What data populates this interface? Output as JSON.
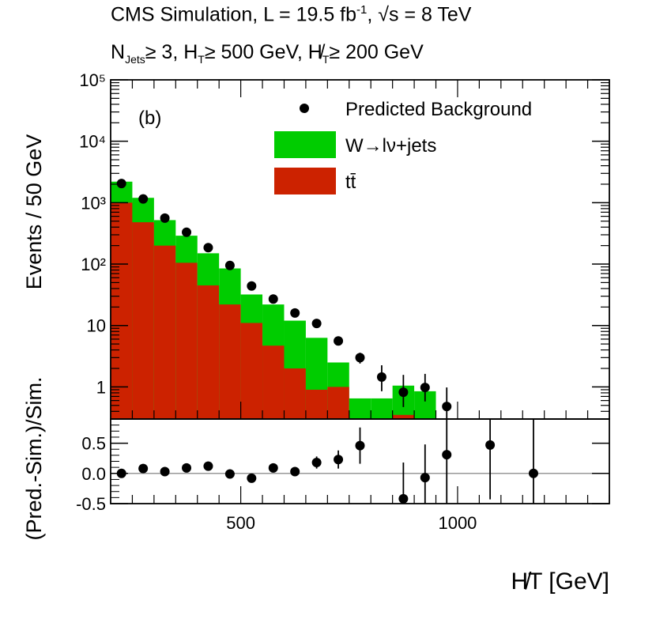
{
  "header": {
    "line1_prefix": "CMS Simulation, L = 19.5 fb",
    "line1_sup": "-1",
    "line1_suffix": ",  √s = 8 TeV",
    "line2_njets": "N",
    "line2_njets_sub": "Jets",
    "line2_cut1": "≥ 3, H",
    "line2_ht_sub": "T",
    "line2_cut2": "≥ 500 GeV, H̸",
    "line2_mht_sub": "T",
    "line2_cut3": "≥ 200 GeV"
  },
  "colors": {
    "wjets": "#00cc00",
    "ttbar": "#cc2200",
    "points": "#000000",
    "refline": "#999999"
  },
  "chart_data": [
    {
      "type": "bar",
      "panel": "main",
      "label": "(b)",
      "xlabel": "H̸T [GeV]",
      "ylabel": "Events / 50 GeV",
      "x_range": [
        200,
        1350
      ],
      "y_scale": "log",
      "y_range": [
        0.3,
        100000
      ],
      "y_ticks": [
        {
          "value": 1,
          "label": "1"
        },
        {
          "value": 10,
          "label": "10"
        },
        {
          "value": 100,
          "label": "10²"
        },
        {
          "value": 1000,
          "label": "10³"
        },
        {
          "value": 10000,
          "label": "10⁴"
        },
        {
          "value": 100000,
          "label": "10⁵"
        }
      ],
      "bin_edges": [
        200,
        250,
        300,
        350,
        400,
        450,
        500,
        550,
        600,
        650,
        700,
        750,
        800,
        850,
        900,
        950,
        1000,
        1050
      ],
      "series": [
        {
          "name": "tt̄",
          "values": [
            1000,
            480,
            200,
            105,
            45,
            22,
            11,
            4.7,
            2.0,
            0.9,
            1.0,
            0.25,
            0.25,
            0.35,
            0.22,
            0.25,
            0.25
          ],
          "stack": "bottom"
        },
        {
          "name": "W→lν+jets",
          "values": [
            2200,
            1200,
            520,
            290,
            150,
            85,
            32,
            22,
            12,
            6.3,
            2.5,
            0.65,
            0.65,
            1.05,
            0.85,
            0.3,
            0.3
          ],
          "stack": "total"
        }
      ],
      "points": {
        "name": "Predicted Background",
        "x": [
          225,
          275,
          325,
          375,
          425,
          475,
          525,
          575,
          625,
          675,
          725,
          775,
          825,
          875,
          925,
          975
        ],
        "y": [
          2050,
          1150,
          560,
          330,
          185,
          95,
          44,
          27,
          16,
          10.8,
          5.6,
          3.0,
          1.45,
          0.82,
          0.98,
          0.48
        ],
        "y_err_low": [
          0,
          0,
          0,
          0,
          0,
          0,
          0,
          0,
          0,
          0,
          0.6,
          0.6,
          0.6,
          0.35,
          0.4,
          0.2
        ],
        "y_err_high": [
          0,
          0,
          0,
          0,
          0,
          0,
          0,
          0,
          0,
          0,
          0.6,
          0.6,
          0.8,
          0.75,
          0.65,
          0.5
        ]
      },
      "legend": [
        {
          "label": "Predicted Background",
          "kind": "marker"
        },
        {
          "label": "W→lν+jets",
          "kind": "box",
          "color": "#00cc00"
        },
        {
          "label": "tt̄",
          "kind": "box",
          "color": "#cc2200"
        }
      ],
      "legend_position": "top-right"
    },
    {
      "type": "scatter",
      "panel": "ratio",
      "xlabel": "H̸T [GeV]",
      "ylabel": "(Pred.-Sim.)/Sim.",
      "x_range": [
        200,
        1350
      ],
      "y_range": [
        -0.5,
        0.9
      ],
      "x_ticks": [
        {
          "value": 500,
          "label": "500"
        },
        {
          "value": 1000,
          "label": "1000"
        }
      ],
      "y_ticks": [
        {
          "value": 0.5,
          "label": "0.5"
        },
        {
          "value": 0.0,
          "label": "0.0"
        },
        {
          "value": -0.5,
          "label": "-0.5"
        }
      ],
      "reference_line": 0.0,
      "x": [
        225,
        275,
        325,
        375,
        425,
        475,
        525,
        575,
        625,
        675,
        725,
        775,
        875,
        925,
        975,
        1075,
        1175
      ],
      "y": [
        0.0,
        0.08,
        0.03,
        0.09,
        0.12,
        -0.01,
        -0.08,
        0.09,
        0.03,
        0.18,
        0.23,
        0.46,
        -0.42,
        -0.07,
        0.31,
        0.47,
        0.0
      ],
      "y_err": [
        0.02,
        0.03,
        0.03,
        0.04,
        0.04,
        0.05,
        0.05,
        0.06,
        0.07,
        0.1,
        0.15,
        0.3,
        0.6,
        0.55,
        0.9,
        0.9,
        0.9
      ]
    }
  ]
}
